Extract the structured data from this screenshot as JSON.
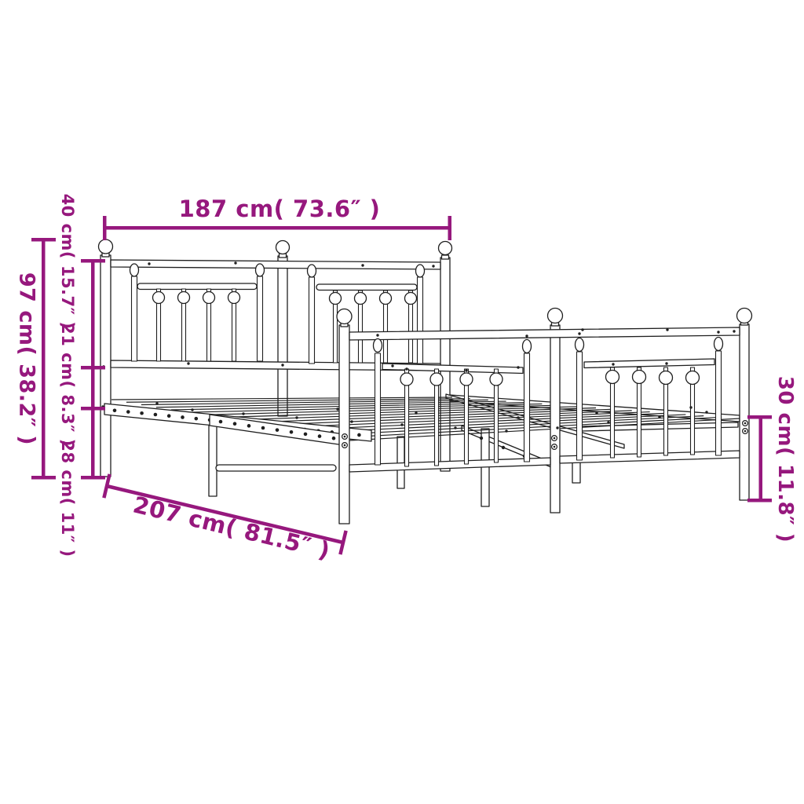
{
  "figure": {
    "subject": "metal bed frame with headboard and footboard",
    "view": "perspective line drawing with dimension callouts"
  },
  "style": {
    "accent_color": "#96187D",
    "line_color": "#1F1F1F",
    "background": "#FFFFFF"
  },
  "dimensions": {
    "width": {
      "label": "187 cm( 73.6″ )",
      "cm": 187,
      "inches": 73.6
    },
    "headboard_height": {
      "label": "97 cm( 38.2″ )",
      "cm": 97,
      "inches": 38.2
    },
    "headboard_upper": {
      "label": "40 cm( 15.7″ )",
      "cm": 40,
      "inches": 15.7
    },
    "headboard_middle": {
      "label": "21 cm( 8.3″ )",
      "cm": 21,
      "inches": 8.3
    },
    "headboard_lower": {
      "label": "28 cm( 11″ )",
      "cm": 28,
      "inches": 11
    },
    "length": {
      "label": "207 cm( 81.5″ )",
      "cm": 207,
      "inches": 81.5
    },
    "footboard_height": {
      "label": "30 cm( 11.8″ )",
      "cm": 30,
      "inches": 11.8
    }
  }
}
